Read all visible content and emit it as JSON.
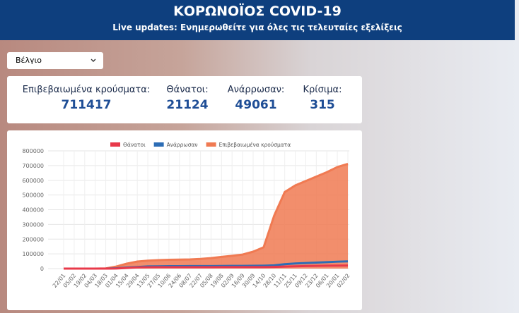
{
  "header": {
    "title": "ΚΟΡΩΝΟΪΟΣ COVID-19",
    "subtitle": "Live updates: Ενημερωθείτε για όλες τις τελευταίες εξελίξεις"
  },
  "selector": {
    "value": "Βέλγιο"
  },
  "stats": [
    {
      "label": "Επιβεβαιωμένα κρούσματα:",
      "value": "711417"
    },
    {
      "label": "Θάνατοι:",
      "value": "21124"
    },
    {
      "label": "Ανάρρωσαν:",
      "value": "49061"
    },
    {
      "label": "Κρίσιμα:",
      "value": "315"
    }
  ],
  "chart_data": {
    "type": "line",
    "categories": [
      "22/01",
      "05/02",
      "19/02",
      "04/03",
      "18/03",
      "01/04",
      "15/04",
      "29/04",
      "13/05",
      "27/05",
      "10/06",
      "24/06",
      "08/07",
      "22/07",
      "05/08",
      "19/08",
      "02/09",
      "16/09",
      "30/09",
      "14/10",
      "28/10",
      "11/11",
      "25/11",
      "09/12",
      "23/12",
      "06/01",
      "20/01",
      "02/02"
    ],
    "series": [
      {
        "name": "Θάνατοι",
        "color": "#e8394a",
        "values": [
          0,
          0,
          0,
          0,
          14,
          828,
          4440,
          7501,
          8843,
          9364,
          9629,
          9732,
          9778,
          9817,
          9859,
          9937,
          9930,
          9979,
          10027,
          10208,
          11297,
          13758,
          15596,
          17655,
          18755,
          19821,
          20572,
          21124
        ]
      },
      {
        "name": "Ανάρρωσαν",
        "color": "#2d6db5",
        "values": [
          0,
          0,
          1,
          1,
          31,
          2132,
          7107,
          10878,
          14847,
          15682,
          16637,
          17021,
          17242,
          17422,
          17661,
          18000,
          18290,
          18615,
          19000,
          20000,
          22000,
          30000,
          35000,
          38000,
          41000,
          44000,
          47000,
          49061
        ]
      },
      {
        "name": "Επιβεβαιωμένα κρούσματα",
        "color": "#f07a52",
        "values": [
          0,
          1,
          1,
          13,
          1486,
          13964,
          33573,
          47859,
          53981,
          57455,
          59819,
          60898,
          62469,
          65727,
          71158,
          79868,
          86810,
          95310,
          115000,
          145000,
          360000,
          520000,
          565000,
          595000,
          625000,
          655000,
          690000,
          711417
        ]
      }
    ],
    "ylim": [
      0,
      800000
    ],
    "yticks": [
      0,
      100000,
      200000,
      300000,
      400000,
      500000,
      600000,
      700000,
      800000
    ],
    "grid": true,
    "legend": "top"
  }
}
